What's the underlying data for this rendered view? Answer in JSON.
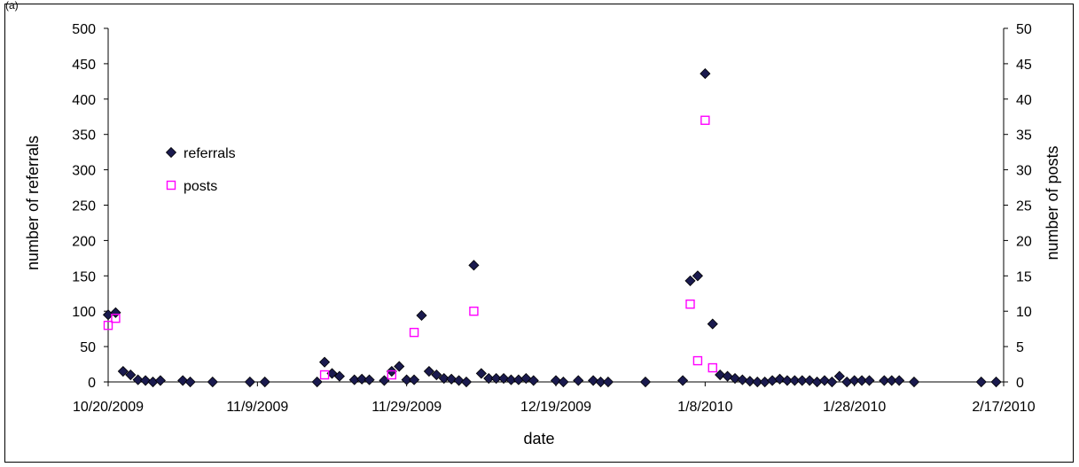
{
  "panel_label": "(a)",
  "chart_data": {
    "type": "scatter",
    "xlabel": "date",
    "ylabel_left": "number of referrals",
    "ylabel_right": "number of posts",
    "x_tick_labels": [
      "10/20/2009",
      "11/9/2009",
      "11/29/2009",
      "12/19/2009",
      "1/8/2010",
      "1/28/2010",
      "2/17/2010"
    ],
    "x_range": [
      "2009-10-20",
      "2010-02-17"
    ],
    "ylim_left": [
      0,
      500
    ],
    "ylim_right": [
      0,
      50
    ],
    "y_ticks_left": [
      "0",
      "50",
      "100",
      "150",
      "200",
      "250",
      "300",
      "350",
      "400",
      "450",
      "500"
    ],
    "y_ticks_right": [
      "0",
      "5",
      "10",
      "15",
      "20",
      "25",
      "30",
      "35",
      "40",
      "45",
      "50"
    ],
    "grid": false,
    "legend_position": "upper-left",
    "series": [
      {
        "name": "referrals",
        "axis": "left",
        "marker": "diamond",
        "color": "#1a1a4e",
        "points": [
          [
            "2009-10-20",
            95
          ],
          [
            "2009-10-21",
            98
          ],
          [
            "2009-10-22",
            15
          ],
          [
            "2009-10-23",
            10
          ],
          [
            "2009-10-24",
            3
          ],
          [
            "2009-10-25",
            2
          ],
          [
            "2009-10-26",
            0
          ],
          [
            "2009-10-27",
            2
          ],
          [
            "2009-10-30",
            2
          ],
          [
            "2009-10-31",
            0
          ],
          [
            "2009-11-03",
            0
          ],
          [
            "2009-11-08",
            0
          ],
          [
            "2009-11-10",
            0
          ],
          [
            "2009-11-17",
            0
          ],
          [
            "2009-11-18",
            28
          ],
          [
            "2009-11-19",
            12
          ],
          [
            "2009-11-20",
            8
          ],
          [
            "2009-11-22",
            3
          ],
          [
            "2009-11-23",
            4
          ],
          [
            "2009-11-24",
            3
          ],
          [
            "2009-11-26",
            2
          ],
          [
            "2009-11-27",
            15
          ],
          [
            "2009-11-28",
            22
          ],
          [
            "2009-11-29",
            3
          ],
          [
            "2009-11-30",
            3
          ],
          [
            "2009-12-01",
            94
          ],
          [
            "2009-12-02",
            15
          ],
          [
            "2009-12-03",
            10
          ],
          [
            "2009-12-04",
            5
          ],
          [
            "2009-12-05",
            4
          ],
          [
            "2009-12-06",
            2
          ],
          [
            "2009-12-07",
            0
          ],
          [
            "2009-12-08",
            165
          ],
          [
            "2009-12-09",
            12
          ],
          [
            "2009-12-10",
            5
          ],
          [
            "2009-12-11",
            5
          ],
          [
            "2009-12-12",
            5
          ],
          [
            "2009-12-13",
            3
          ],
          [
            "2009-12-14",
            3
          ],
          [
            "2009-12-15",
            5
          ],
          [
            "2009-12-16",
            2
          ],
          [
            "2009-12-19",
            2
          ],
          [
            "2009-12-20",
            0
          ],
          [
            "2009-12-22",
            2
          ],
          [
            "2009-12-24",
            2
          ],
          [
            "2009-12-25",
            0
          ],
          [
            "2009-12-26",
            0
          ],
          [
            "2009-12-31",
            0
          ],
          [
            "2010-01-05",
            2
          ],
          [
            "2010-01-06",
            143
          ],
          [
            "2010-01-07",
            150
          ],
          [
            "2010-01-08",
            436
          ],
          [
            "2010-01-09",
            82
          ],
          [
            "2010-01-10",
            10
          ],
          [
            "2010-01-11",
            8
          ],
          [
            "2010-01-12",
            5
          ],
          [
            "2010-01-13",
            3
          ],
          [
            "2010-01-14",
            1
          ],
          [
            "2010-01-15",
            0
          ],
          [
            "2010-01-16",
            0
          ],
          [
            "2010-01-17",
            2
          ],
          [
            "2010-01-18",
            4
          ],
          [
            "2010-01-19",
            2
          ],
          [
            "2010-01-20",
            2
          ],
          [
            "2010-01-21",
            2
          ],
          [
            "2010-01-22",
            2
          ],
          [
            "2010-01-23",
            0
          ],
          [
            "2010-01-24",
            2
          ],
          [
            "2010-01-25",
            0
          ],
          [
            "2010-01-26",
            8
          ],
          [
            "2010-01-27",
            0
          ],
          [
            "2010-01-28",
            2
          ],
          [
            "2010-01-29",
            2
          ],
          [
            "2010-01-30",
            2
          ],
          [
            "2010-02-01",
            2
          ],
          [
            "2010-02-02",
            2
          ],
          [
            "2010-02-03",
            2
          ],
          [
            "2010-02-05",
            0
          ],
          [
            "2010-02-14",
            0
          ],
          [
            "2010-02-16",
            0
          ]
        ]
      },
      {
        "name": "posts",
        "axis": "right",
        "marker": "open-square",
        "color": "#ff00ff",
        "points": [
          [
            "2009-10-20",
            8
          ],
          [
            "2009-10-21",
            9
          ],
          [
            "2009-11-18",
            1
          ],
          [
            "2009-11-27",
            1
          ],
          [
            "2009-11-30",
            7
          ],
          [
            "2009-12-08",
            10
          ],
          [
            "2010-01-06",
            11
          ],
          [
            "2010-01-07",
            3
          ],
          [
            "2010-01-08",
            37
          ],
          [
            "2010-01-09",
            2
          ]
        ]
      }
    ]
  }
}
